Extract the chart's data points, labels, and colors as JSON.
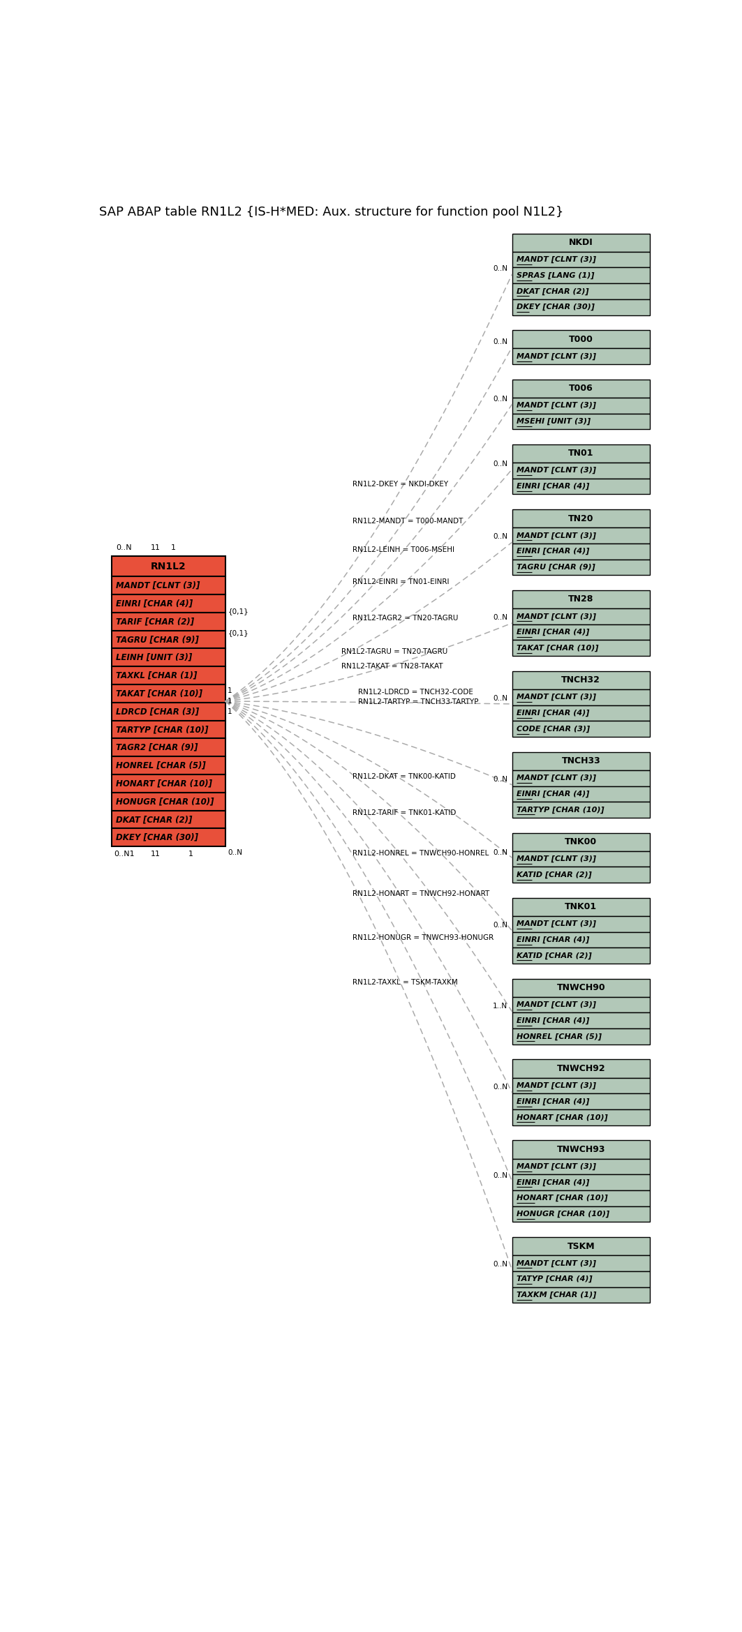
{
  "title": "SAP ABAP table RN1L2 {IS-H*MED: Aux. structure for function pool N1L2}",
  "title_fontsize": 13,
  "fig_width": 10.63,
  "fig_height": 23.39,
  "bg_color": "#ffffff",
  "main_table": {
    "name": "RN1L2",
    "header_color": "#e8503a",
    "fields": [
      "MANDT [CLNT (3)]",
      "EINRI [CHAR (4)]",
      "TARIF [CHAR (2)]",
      "TAGRU [CHAR (9)]",
      "LEINH [UNIT (3)]",
      "TAXKL [CHAR (1)]",
      "TAKAT [CHAR (10)]",
      "LDRCD [CHAR (3)]",
      "TARTYP [CHAR (10)]",
      "TAGR2 [CHAR (9)]",
      "HONREL [CHAR (5)]",
      "HONART [CHAR (10)]",
      "HONUGR [CHAR (10)]",
      "DKAT [CHAR (2)]",
      "DKEY [CHAR (30)]"
    ]
  },
  "related_tables": [
    {
      "name": "NKDI",
      "header_color": "#b2c8b8",
      "fields": [
        "MANDT [CLNT (3)]",
        "SPRAS [LANG (1)]",
        "DKAT [CHAR (2)]",
        "DKEY [CHAR (30)]"
      ],
      "key_fields": [
        0,
        1,
        2,
        3
      ],
      "relation_label": "RN1L2-DKEY = NKDI-DKEY",
      "cardinality": "0..N",
      "left_label": ""
    },
    {
      "name": "T000",
      "header_color": "#b2c8b8",
      "fields": [
        "MANDT [CLNT (3)]"
      ],
      "key_fields": [
        0
      ],
      "relation_label": "RN1L2-MANDT = T000-MANDT",
      "cardinality": "0..N",
      "left_label": ""
    },
    {
      "name": "T006",
      "header_color": "#b2c8b8",
      "fields": [
        "MANDT [CLNT (3)]",
        "MSEHI [UNIT (3)]"
      ],
      "key_fields": [
        0,
        1
      ],
      "relation_label": "RN1L2-LEINH = T006-MSEHI",
      "cardinality": "0..N",
      "left_label": ""
    },
    {
      "name": "TN01",
      "header_color": "#b2c8b8",
      "fields": [
        "MANDT [CLNT (3)]",
        "EINRI [CHAR (4)]"
      ],
      "key_fields": [
        0,
        1
      ],
      "relation_label": "RN1L2-EINRI = TN01-EINRI",
      "cardinality": "0..N",
      "left_label": ""
    },
    {
      "name": "TN20",
      "header_color": "#b2c8b8",
      "fields": [
        "MANDT [CLNT (3)]",
        "EINRI [CHAR (4)]",
        "TAGRU [CHAR (9)]"
      ],
      "key_fields": [
        0,
        1,
        2
      ],
      "relation_label": "RN1L2-TAGR2 = TN20-TAGRU",
      "cardinality": "0..N",
      "left_label": ""
    },
    {
      "name": "TN28",
      "header_color": "#b2c8b8",
      "fields": [
        "MANDT [CLNT (3)]",
        "EINRI [CHAR (4)]",
        "TAKAT [CHAR (10)]"
      ],
      "key_fields": [
        0,
        1,
        2
      ],
      "relation_label": "RN1L2-TAGRU = TN20-TAGRU",
      "relation_label_extra": "RN1L2-TAKAT = TN28-TAKAT",
      "cardinality": "0..N",
      "left_label": "{0,1}",
      "left_label2": "{0,1}"
    },
    {
      "name": "TNCH32",
      "header_color": "#b2c8b8",
      "fields": [
        "MANDT [CLNT (3)]",
        "EINRI [CHAR (4)]",
        "CODE [CHAR (3)]"
      ],
      "key_fields": [
        0,
        1,
        2
      ],
      "relation_label": "RN1L2-LDRCD = TNCH32-CODE",
      "relation_label_extra": "RN1L2-TARTYP = TNCH33-TARTYP",
      "cardinality": "0..N",
      "left_label": "1",
      "left_label2": "1",
      "left_label3": "1"
    },
    {
      "name": "TNCH33",
      "header_color": "#b2c8b8",
      "fields": [
        "MANDT [CLNT (3)]",
        "EINRI [CHAR (4)]",
        "TARTYP [CHAR (10)]"
      ],
      "key_fields": [
        0,
        1,
        2
      ],
      "relation_label": "",
      "cardinality": "0..N",
      "left_label": ""
    },
    {
      "name": "TNK00",
      "header_color": "#b2c8b8",
      "fields": [
        "MANDT [CLNT (3)]",
        "KATID [CHAR (2)]"
      ],
      "key_fields": [
        0,
        1
      ],
      "relation_label": "RN1L2-DKAT = TNK00-KATID",
      "cardinality": "0..N",
      "left_label": "0..N"
    },
    {
      "name": "TNK01",
      "header_color": "#b2c8b8",
      "fields": [
        "MANDT [CLNT (3)]",
        "EINRI [CHAR (4)]",
        "KATID [CHAR (2)]"
      ],
      "key_fields": [
        0,
        1,
        2
      ],
      "relation_label": "RN1L2-TARIF = TNK01-KATID",
      "cardinality": "0..N",
      "left_label": ""
    },
    {
      "name": "TNWCH90",
      "header_color": "#b2c8b8",
      "fields": [
        "MANDT [CLNT (3)]",
        "EINRI [CHAR (4)]",
        "HONREL [CHAR (5)]"
      ],
      "key_fields": [
        0,
        1,
        2
      ],
      "relation_label": "RN1L2-HONREL = TNWCH90-HONREL",
      "cardinality": "1..N",
      "left_label": ""
    },
    {
      "name": "TNWCH92",
      "header_color": "#b2c8b8",
      "fields": [
        "MANDT [CLNT (3)]",
        "EINRI [CHAR (4)]",
        "HONART [CHAR (10)]"
      ],
      "key_fields": [
        0,
        1,
        2
      ],
      "relation_label": "RN1L2-HONART = TNWCH92-HONART",
      "cardinality": "0..N",
      "left_label": ""
    },
    {
      "name": "TNWCH93",
      "header_color": "#b2c8b8",
      "fields": [
        "MANDT [CLNT (3)]",
        "EINRI [CHAR (4)]",
        "HONART [CHAR (10)]",
        "HONUGR [CHAR (10)]"
      ],
      "key_fields": [
        0,
        1,
        2,
        3
      ],
      "relation_label": "RN1L2-HONUGR = TNWCH93-HONUGR",
      "cardinality": "0..N",
      "left_label": ""
    },
    {
      "name": "TSKM",
      "header_color": "#b2c8b8",
      "fields": [
        "MANDT [CLNT (3)]",
        "TATYP [CHAR (4)]",
        "TAXKM [CHAR (1)]"
      ],
      "key_fields": [
        0,
        1,
        2
      ],
      "relation_label": "RN1L2-TAXKL = TSKM-TAXKM",
      "cardinality": "0..N",
      "left_label": ""
    }
  ],
  "line_color": "#aaaaaa",
  "conn_color": "#999999"
}
